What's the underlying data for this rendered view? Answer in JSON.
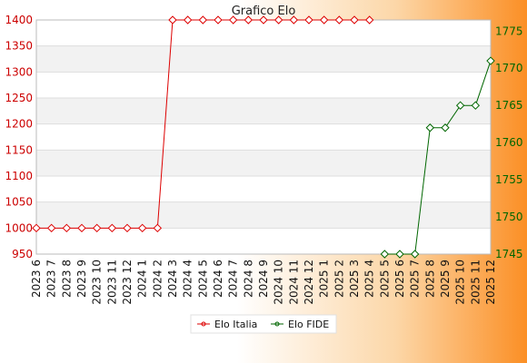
{
  "chart_data": {
    "type": "line",
    "title": "Grafico Elo",
    "categories": [
      "2023 6",
      "2023 7",
      "2023 8",
      "2023 9",
      "2023 10",
      "2023 11",
      "2023 12",
      "2024 1",
      "2024 2",
      "2024 3",
      "2024 4",
      "2024 5",
      "2024 6",
      "2024 7",
      "2024 8",
      "2024 9",
      "2024 10",
      "2024 11",
      "2024 12",
      "2025 1",
      "2025 2",
      "2025 3",
      "2025 4",
      "2025 5",
      "2025 6",
      "2025 7",
      "2025 8",
      "2025 9",
      "2025 10",
      "2025 11",
      "2025 12"
    ],
    "y_left": {
      "lim": [
        950,
        1400
      ],
      "ticks": [
        950,
        1000,
        1050,
        1100,
        1150,
        1200,
        1250,
        1300,
        1350,
        1400
      ],
      "color": "#cc0000"
    },
    "y_right": {
      "lim": [
        1745,
        1776.5
      ],
      "ticks": [
        1745,
        1750,
        1755,
        1760,
        1765,
        1770,
        1775
      ],
      "color": "#006600"
    },
    "series": [
      {
        "name": "Elo Italia",
        "axis": "left",
        "color": "#dd0000",
        "values": [
          1000,
          1000,
          1000,
          1000,
          1000,
          1000,
          1000,
          1000,
          1000,
          1400,
          1400,
          1400,
          1400,
          1400,
          1400,
          1400,
          1400,
          1400,
          1400,
          1400,
          1400,
          1400,
          1400,
          null,
          null,
          null,
          null,
          null,
          null,
          null,
          null
        ]
      },
      {
        "name": "Elo FIDE",
        "axis": "right",
        "color": "#006600",
        "values": [
          null,
          null,
          null,
          null,
          null,
          null,
          null,
          null,
          null,
          null,
          null,
          null,
          null,
          null,
          null,
          null,
          null,
          null,
          null,
          null,
          null,
          null,
          null,
          1745,
          1745,
          1745,
          1762,
          1762,
          1765,
          1765,
          1771
        ]
      }
    ],
    "grid": true,
    "legend_position": "bottom"
  }
}
